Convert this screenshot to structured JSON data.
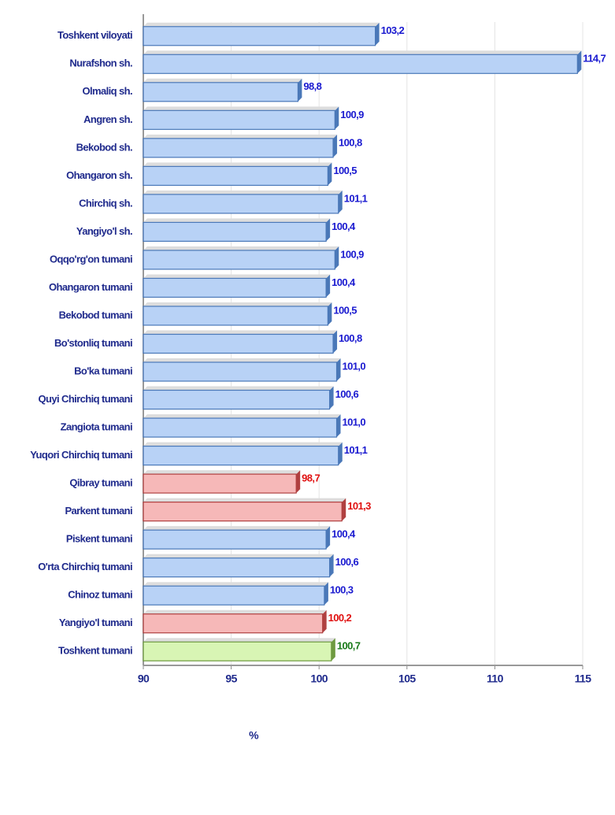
{
  "chart_data": {
    "type": "barh",
    "categories": [
      "Toshkent viloyati",
      "Nurafshon sh.",
      "Olmaliq sh.",
      "Angren sh.",
      "Bekobod sh.",
      "Ohangaron sh.",
      "Chirchiq sh.",
      "Yangiyo'l sh.",
      "Oqqo'rg'on tumani",
      "Ohangaron tumani",
      "Bekobod tumani",
      "Bo'stonliq tumani",
      "Bo'ka tumani",
      "Quyi Chirchiq tumani",
      "Zangiota tumani",
      "Yuqori Chirchiq tumani",
      "Qibray tumani",
      "Parkent tumani",
      "Piskent tumani",
      "O'rta Chirchiq tumani",
      "Chinoz tumani",
      "Yangiyo'l tumani",
      "Toshkent tumani"
    ],
    "values": [
      103.2,
      114.7,
      98.8,
      100.9,
      100.8,
      100.5,
      101.1,
      100.4,
      100.9,
      100.4,
      100.5,
      100.8,
      101.0,
      100.6,
      101.0,
      101.1,
      98.7,
      101.3,
      100.4,
      100.6,
      100.3,
      100.2,
      100.7
    ],
    "value_labels": [
      "103,2",
      "114,7",
      "98,8",
      "100,9",
      "100,8",
      "100,5",
      "101,1",
      "100,4",
      "100,9",
      "100,4",
      "100,5",
      "100,8",
      "101,0",
      "100,6",
      "101,0",
      "101,1",
      "98,7",
      "101,3",
      "100,4",
      "100,6",
      "100,3",
      "100,2",
      "100,7"
    ],
    "colors": [
      "#b8d2f6",
      "#b8d2f6",
      "#b8d2f6",
      "#b8d2f6",
      "#b8d2f6",
      "#b8d2f6",
      "#b8d2f6",
      "#b8d2f6",
      "#b8d2f6",
      "#b8d2f6",
      "#b8d2f6",
      "#b8d2f6",
      "#b8d2f6",
      "#b8d2f6",
      "#b8d2f6",
      "#b8d2f6",
      "#f6b8b8",
      "#f6b8b8",
      "#b8d2f6",
      "#b8d2f6",
      "#b8d2f6",
      "#f6b8b8",
      "#d8f5b4"
    ],
    "label_colors": [
      "#1a1ad0",
      "#1a1ad0",
      "#1a1ad0",
      "#1a1ad0",
      "#1a1ad0",
      "#1a1ad0",
      "#1a1ad0",
      "#1a1ad0",
      "#1a1ad0",
      "#1a1ad0",
      "#1a1ad0",
      "#1a1ad0",
      "#1a1ad0",
      "#1a1ad0",
      "#1a1ad0",
      "#1a1ad0",
      "#e01010",
      "#e01010",
      "#1a1ad0",
      "#1a1ad0",
      "#1a1ad0",
      "#e01010",
      "#1a7a1a"
    ],
    "xlim": [
      90,
      115
    ],
    "xticks": [
      90,
      95,
      100,
      105,
      110,
      115
    ],
    "x_label": "%",
    "grid": true
  }
}
